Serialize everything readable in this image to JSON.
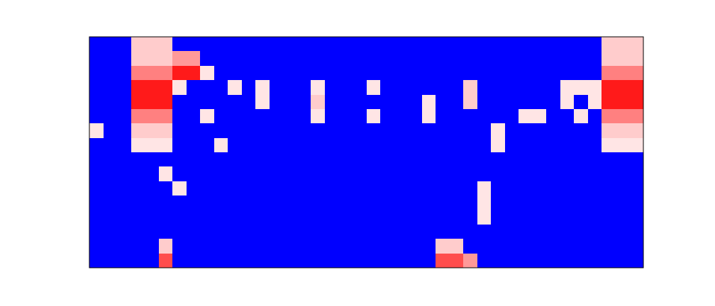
{
  "chart_data": {
    "type": "heatmap",
    "tick_labels": false,
    "zlim": [
      0,
      1
    ],
    "z": [
      [
        0,
        0,
        0,
        0.6,
        0.6,
        0.6,
        0,
        0,
        0,
        0,
        0,
        0,
        0,
        0,
        0,
        0,
        0,
        0,
        0,
        0,
        0,
        0,
        0,
        0,
        0,
        0,
        0,
        0,
        0,
        0,
        0,
        0,
        0,
        0,
        0,
        0,
        0,
        0.6,
        0.6,
        0.6
      ],
      [
        0,
        0,
        0,
        0.6,
        0.6,
        0.6,
        0.7,
        0.7,
        0,
        0,
        0,
        0,
        0,
        0,
        0,
        0,
        0,
        0,
        0,
        0,
        0,
        0,
        0,
        0,
        0,
        0,
        0,
        0,
        0,
        0,
        0,
        0,
        0,
        0,
        0,
        0,
        0,
        0.6,
        0.6,
        0.6
      ],
      [
        0,
        0,
        0,
        0.75,
        0.75,
        0.75,
        0.95,
        0.95,
        0.55,
        0,
        0,
        0,
        0,
        0,
        0,
        0,
        0,
        0,
        0,
        0,
        0,
        0,
        0,
        0,
        0,
        0,
        0,
        0,
        0,
        0,
        0,
        0,
        0,
        0,
        0,
        0,
        0,
        0.75,
        0.75,
        0.75
      ],
      [
        0,
        0,
        0,
        0.95,
        0.95,
        0.95,
        0.55,
        0,
        0,
        0,
        0.55,
        0,
        0.55,
        0,
        0,
        0,
        0.55,
        0,
        0,
        0,
        0.55,
        0,
        0,
        0,
        0,
        0,
        0,
        0.6,
        0,
        0,
        0,
        0,
        0,
        0,
        0.55,
        0.55,
        0.55,
        0.95,
        0.95,
        0.95
      ],
      [
        0,
        0,
        0,
        0.95,
        0.95,
        0.95,
        0,
        0,
        0,
        0,
        0,
        0,
        0.55,
        0,
        0,
        0,
        0.6,
        0,
        0,
        0,
        0,
        0,
        0,
        0,
        0.55,
        0,
        0,
        0.6,
        0,
        0,
        0,
        0,
        0,
        0,
        0.55,
        0,
        0.55,
        0.95,
        0.95,
        0.95
      ],
      [
        0,
        0,
        0,
        0.75,
        0.75,
        0.75,
        0,
        0,
        0.55,
        0,
        0,
        0,
        0,
        0,
        0,
        0,
        0.55,
        0,
        0,
        0,
        0.55,
        0,
        0,
        0,
        0.55,
        0,
        0,
        0,
        0,
        0,
        0,
        0.55,
        0.55,
        0,
        0,
        0.55,
        0,
        0.75,
        0.75,
        0.75
      ],
      [
        0.55,
        0,
        0,
        0.6,
        0.6,
        0.6,
        0,
        0,
        0,
        0,
        0,
        0,
        0,
        0,
        0,
        0,
        0,
        0,
        0,
        0,
        0,
        0,
        0,
        0,
        0,
        0,
        0,
        0,
        0,
        0.55,
        0,
        0,
        0,
        0,
        0,
        0,
        0,
        0.6,
        0.6,
        0.6
      ],
      [
        0,
        0,
        0,
        0.55,
        0.55,
        0.55,
        0,
        0,
        0,
        0.55,
        0,
        0,
        0,
        0,
        0,
        0,
        0,
        0,
        0,
        0,
        0,
        0,
        0,
        0,
        0,
        0,
        0,
        0,
        0,
        0.55,
        0,
        0,
        0,
        0,
        0,
        0,
        0,
        0.55,
        0.55,
        0.55
      ],
      [
        0,
        0,
        0,
        0,
        0,
        0,
        0,
        0,
        0,
        0,
        0,
        0,
        0,
        0,
        0,
        0,
        0,
        0,
        0,
        0,
        0,
        0,
        0,
        0,
        0,
        0,
        0,
        0,
        0,
        0,
        0,
        0,
        0,
        0,
        0,
        0,
        0,
        0,
        0,
        0
      ],
      [
        0,
        0,
        0,
        0,
        0,
        0.55,
        0,
        0,
        0,
        0,
        0,
        0,
        0,
        0,
        0,
        0,
        0,
        0,
        0,
        0,
        0,
        0,
        0,
        0,
        0,
        0,
        0,
        0,
        0,
        0,
        0,
        0,
        0,
        0,
        0,
        0,
        0,
        0,
        0,
        0
      ],
      [
        0,
        0,
        0,
        0,
        0,
        0,
        0.55,
        0,
        0,
        0,
        0,
        0,
        0,
        0,
        0,
        0,
        0,
        0,
        0,
        0,
        0,
        0,
        0,
        0,
        0,
        0,
        0,
        0,
        0.55,
        0,
        0,
        0,
        0,
        0,
        0,
        0,
        0,
        0,
        0,
        0
      ],
      [
        0,
        0,
        0,
        0,
        0,
        0,
        0,
        0,
        0,
        0,
        0,
        0,
        0,
        0,
        0,
        0,
        0,
        0,
        0,
        0,
        0,
        0,
        0,
        0,
        0,
        0,
        0,
        0,
        0.55,
        0,
        0,
        0,
        0,
        0,
        0,
        0,
        0,
        0,
        0,
        0
      ],
      [
        0,
        0,
        0,
        0,
        0,
        0,
        0,
        0,
        0,
        0,
        0,
        0,
        0,
        0,
        0,
        0,
        0,
        0,
        0,
        0,
        0,
        0,
        0,
        0,
        0,
        0,
        0,
        0,
        0.55,
        0,
        0,
        0,
        0,
        0,
        0,
        0,
        0,
        0,
        0,
        0
      ],
      [
        0,
        0,
        0,
        0,
        0,
        0,
        0,
        0,
        0,
        0,
        0,
        0,
        0,
        0,
        0,
        0,
        0,
        0,
        0,
        0,
        0,
        0,
        0,
        0,
        0,
        0,
        0,
        0,
        0,
        0,
        0,
        0,
        0,
        0,
        0,
        0,
        0,
        0,
        0,
        0
      ],
      [
        0,
        0,
        0,
        0,
        0,
        0.6,
        0,
        0,
        0,
        0,
        0,
        0,
        0,
        0,
        0,
        0,
        0,
        0,
        0,
        0,
        0,
        0,
        0,
        0,
        0,
        0.6,
        0.6,
        0,
        0,
        0,
        0,
        0,
        0,
        0,
        0,
        0,
        0,
        0,
        0,
        0
      ],
      [
        0,
        0,
        0,
        0,
        0,
        0.85,
        0,
        0,
        0,
        0,
        0,
        0,
        0,
        0,
        0,
        0,
        0,
        0,
        0,
        0,
        0,
        0,
        0,
        0,
        0,
        0.85,
        0.85,
        0.7,
        0,
        0,
        0,
        0,
        0,
        0,
        0,
        0,
        0,
        0,
        0,
        0
      ]
    ]
  }
}
